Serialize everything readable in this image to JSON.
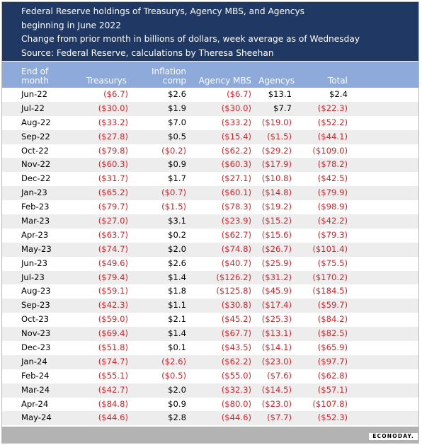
{
  "title": {
    "line1": "Federal Reserve holdings of Treasurys, Agency MBS, and Agencys",
    "line2": "beginning in June 2022",
    "line3": "Change from prior month in billions of dollars, week average as of Wednesday",
    "line4": "Source: Federal Reserve, calculations by Theresa Sheehan"
  },
  "columns": {
    "month_line1": "End of",
    "month_line2": "month",
    "treasurys": "Treasurys",
    "inflation_line1": "Inflation",
    "inflation_line2": "comp",
    "agency_mbs": "Agency MBS",
    "agencys": "Agencys",
    "total": "Total"
  },
  "colors": {
    "header_dark": "#1f3864",
    "header_light": "#8eaadb",
    "negative": "#d1252c",
    "stripe": "#ededed",
    "footer": "#b3b3b3"
  },
  "rows": [
    [
      "Jun-22",
      "($6.7)",
      "$2.6",
      "($6.7)",
      "$13.1",
      "$2.4"
    ],
    [
      "Jul-22",
      "($30.0)",
      "$1.9",
      "($30.0)",
      "$7.7",
      "($22.3)"
    ],
    [
      "Aug-22",
      "($33.2)",
      "$7.0",
      "($33.2)",
      "($19.0)",
      "($52.2)"
    ],
    [
      "Sep-22",
      "($27.8)",
      "$0.5",
      "($15.4)",
      "($1.5)",
      "($44.1)"
    ],
    [
      "Oct-22",
      "($79.8)",
      "($0.2)",
      "($62.2)",
      "($29.2)",
      "($109.0)"
    ],
    [
      "Nov-22",
      "($60.3)",
      "$0.9",
      "($60.3)",
      "($17.9)",
      "($78.2)"
    ],
    [
      "Dec-22",
      "($31.7)",
      "$1.7",
      "($27.1)",
      "($10.8)",
      "($42.5)"
    ],
    [
      "Jan-23",
      "($65.2)",
      "($0.7)",
      "($60.1)",
      "($14.8)",
      "($79.9)"
    ],
    [
      "Feb-23",
      "($79.7)",
      "($1.5)",
      "($78.3)",
      "($19.2)",
      "($98.9)"
    ],
    [
      "Mar-23",
      "($27.0)",
      "$3.1",
      "($23.9)",
      "($15.2)",
      "($42.2)"
    ],
    [
      "Apr-23",
      "($63.7)",
      "$0.2",
      "($62.7)",
      "($15.6)",
      "($79.3)"
    ],
    [
      "May-23",
      "($74.7)",
      "$2.0",
      "($74.8)",
      "($26.7)",
      "($101.4)"
    ],
    [
      "Jun-23",
      "($49.6)",
      "$2.6",
      "($40.7)",
      "($25.9)",
      "($75.5)"
    ],
    [
      "Jul-23",
      "($79.4)",
      "$1.4",
      "($126.2)",
      "($31.2)",
      "($170.2)"
    ],
    [
      "Aug-23",
      "($59.1)",
      "$1.8",
      "($125.8)",
      "($45.9)",
      "($184.5)"
    ],
    [
      "Sep-23",
      "($42.3)",
      "$1.1",
      "($30.8)",
      "($17.4)",
      "($59.7)"
    ],
    [
      "Oct-23",
      "($59.0)",
      "$2.1",
      "($45.2)",
      "($25.3)",
      "($84.2)"
    ],
    [
      "Nov-23",
      "($69.4)",
      "$1.4",
      "($67.7)",
      "($13.1)",
      "($82.5)"
    ],
    [
      "Dec-23",
      "($51.8)",
      "$0.1",
      "($43.5)",
      "($14.1)",
      "($65.9)"
    ],
    [
      "Jan-24",
      "($74.7)",
      "($2.6)",
      "($62.2)",
      "($23.0)",
      "($97.7)"
    ],
    [
      "Feb-24",
      "($55.1)",
      "($0.5)",
      "($55.0)",
      "($7.6)",
      "($62.8)"
    ],
    [
      "Mar-24",
      "($42.7)",
      "$2.0",
      "($32.3)",
      "($14.5)",
      "($57.1)"
    ],
    [
      "Apr-24",
      "($84.8)",
      "$0.9",
      "($80.0)",
      "($23.0)",
      "($107.8)"
    ],
    [
      "May-24",
      "($44.6)",
      "$2.8",
      "($44.6)",
      "($7.7)",
      "($52.3)"
    ]
  ],
  "logo": "ECONODAY."
}
